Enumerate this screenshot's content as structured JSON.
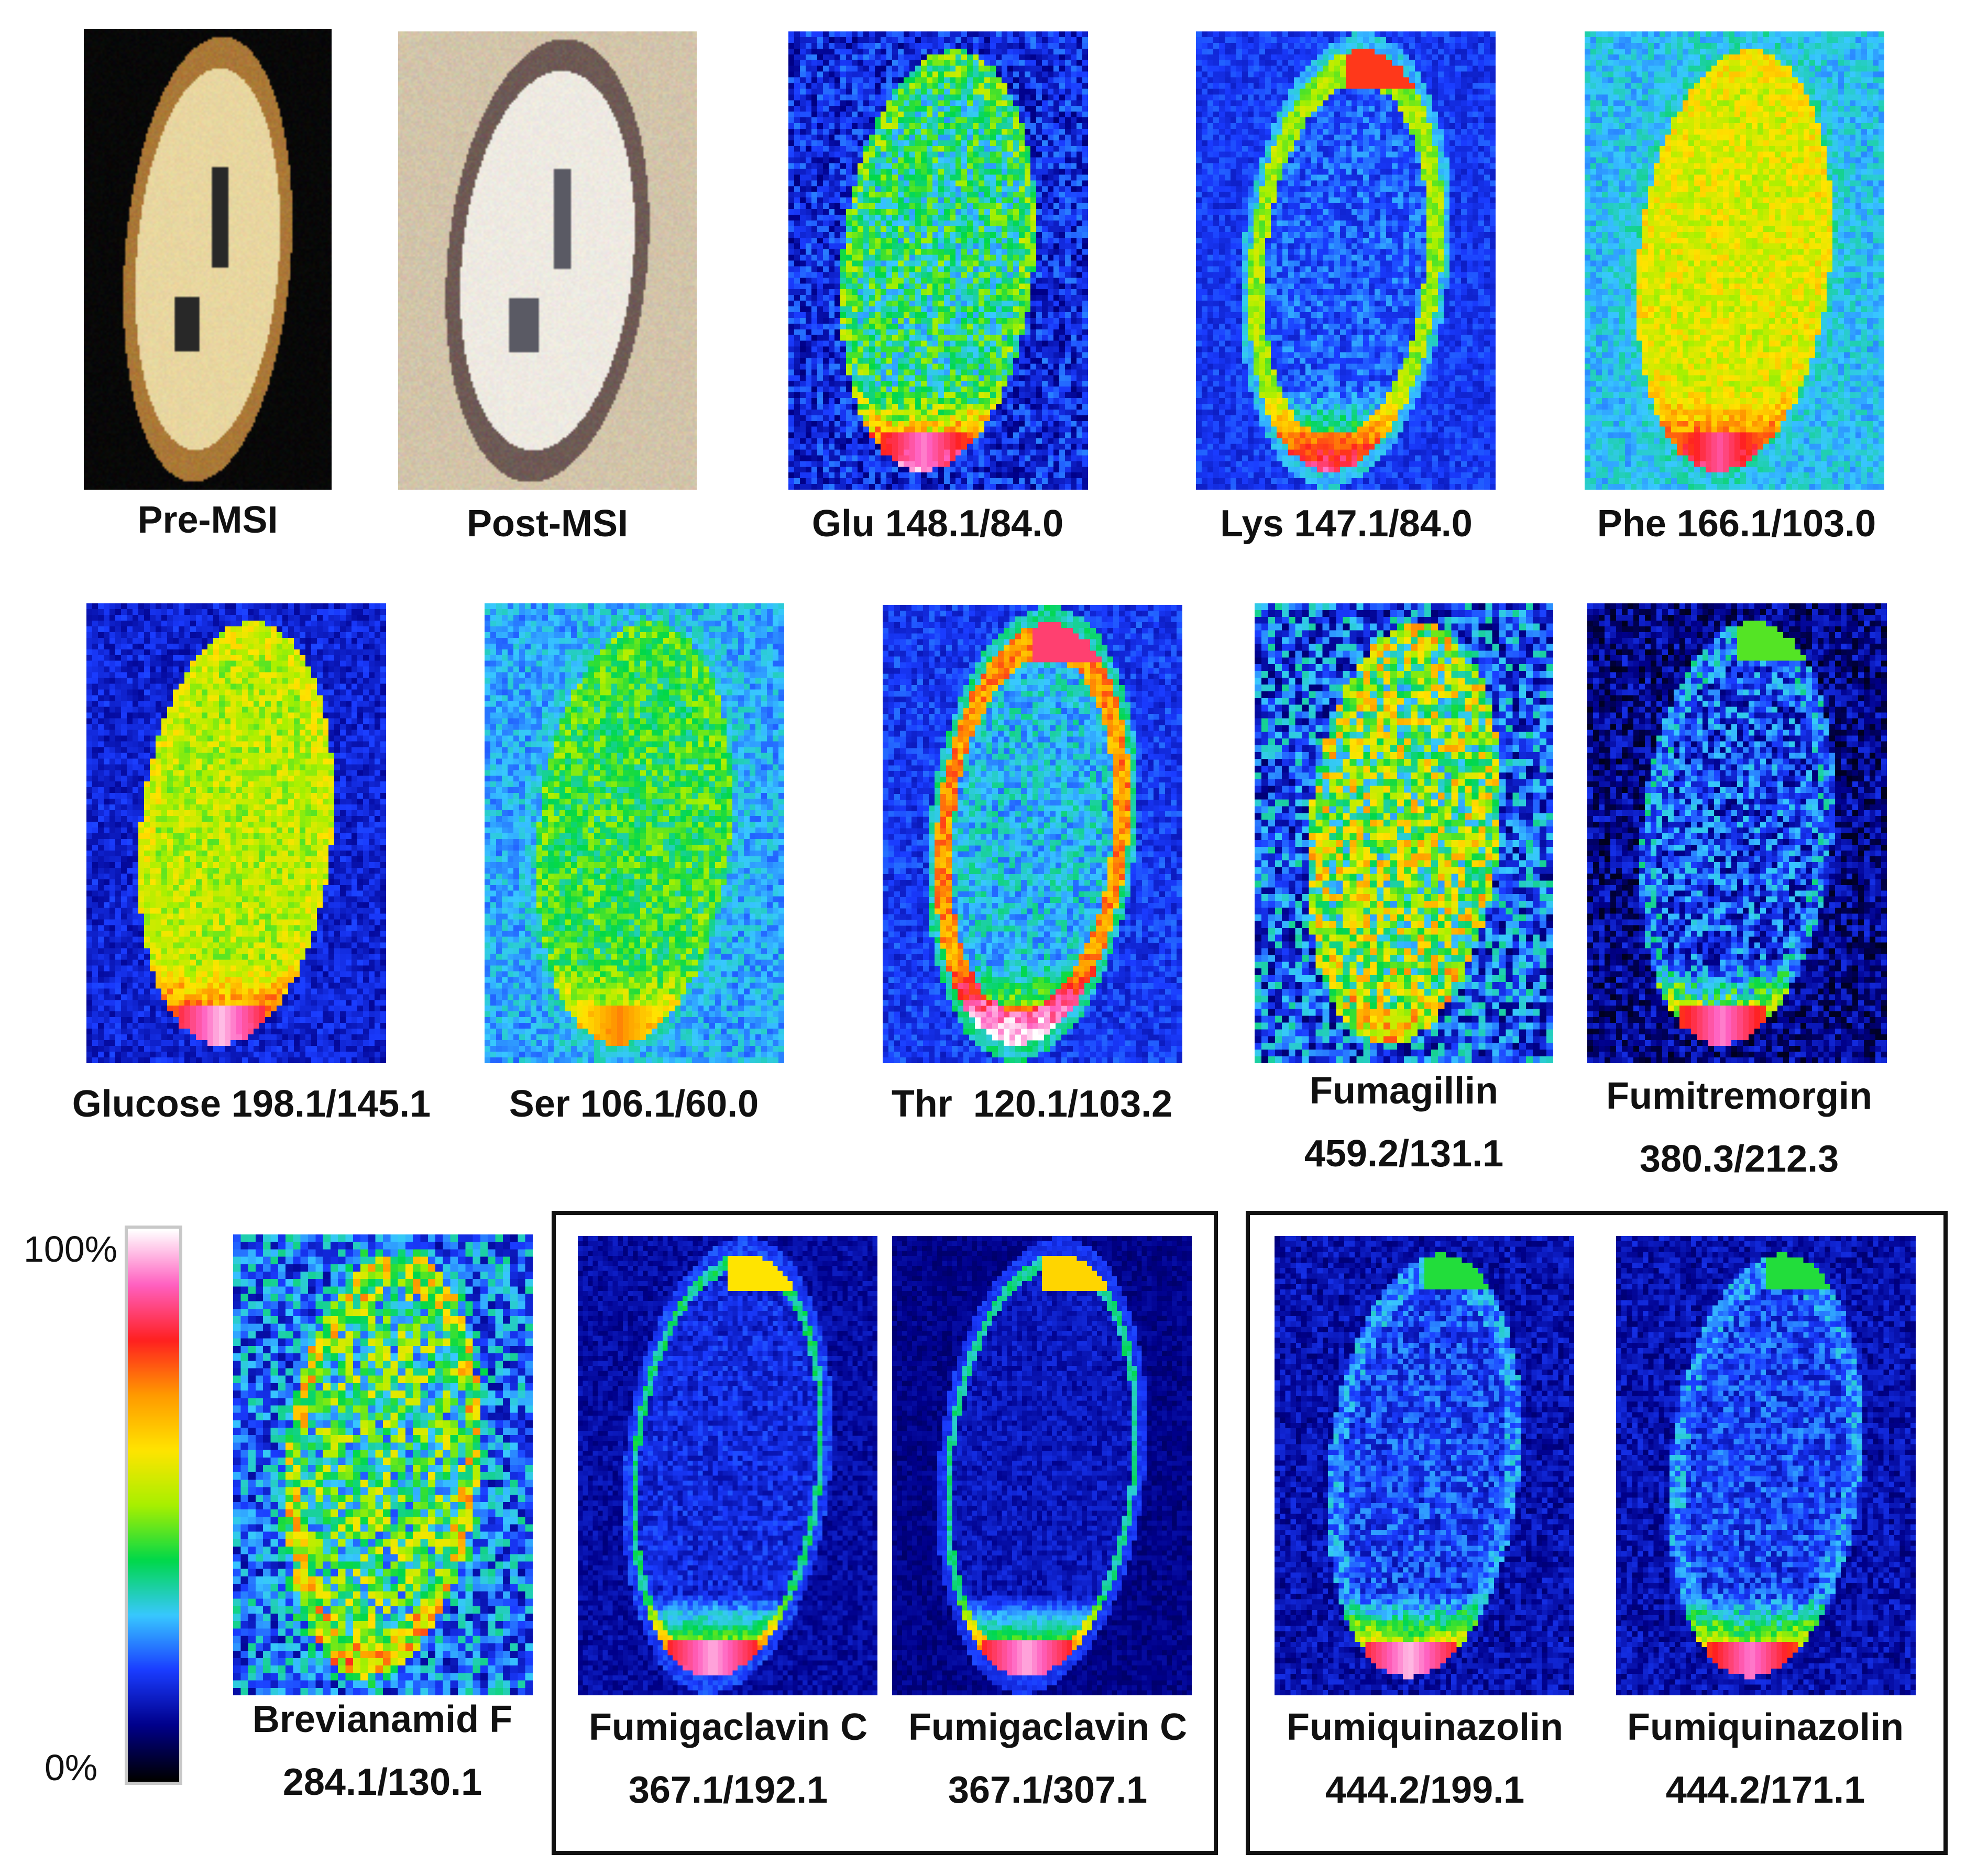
{
  "colors": {
    "background_dark": "#000030",
    "scale": [
      "#000000",
      "#00008a",
      "#1a3cff",
      "#38c8ff",
      "#00d84a",
      "#a8f000",
      "#ffe400",
      "#ff9a00",
      "#ff2020",
      "#ff60c0",
      "#ffffff"
    ]
  },
  "colorbar": {
    "max_label": "100%",
    "min_label": "0%"
  },
  "panels": {
    "pre_msi": {
      "label": "Pre-MSI"
    },
    "post_msi": {
      "label": "Post-MSI"
    },
    "glu": {
      "label": "Glu 148.1/84.0"
    },
    "lys": {
      "label": "Lys 147.1/84.0"
    },
    "phe": {
      "label": "Phe 166.1/103.0"
    },
    "glucose": {
      "label": "Glucose 198.1/145.1"
    },
    "ser": {
      "label": "Ser 106.1/60.0"
    },
    "thr": {
      "label": "Thr  120.1/103.2"
    },
    "fumagillin": {
      "label_line1": "Fumagillin",
      "label_line2": "459.2/131.1"
    },
    "fumitremorgin": {
      "label_line1": "Fumitremorgin",
      "label_line2": "380.3/212.3"
    },
    "brevianamid": {
      "label_line1": "Brevianamid F",
      "label_line2": "284.1/130.1"
    },
    "fumigaclavin_1": {
      "label_line1": "Fumigaclavin C",
      "label_line2": "367.1/192.1"
    },
    "fumigaclavin_2": {
      "label_line1": "Fumigaclavin C",
      "label_line2": "367.1/307.1"
    },
    "fumiquinazolin_1": {
      "label_line1": "Fumiquinazolin",
      "label_line2": "444.2/199.1"
    },
    "fumiquinazolin_2": {
      "label_line1": "Fumiquinazolin",
      "label_line2": "444.2/171.1"
    }
  }
}
